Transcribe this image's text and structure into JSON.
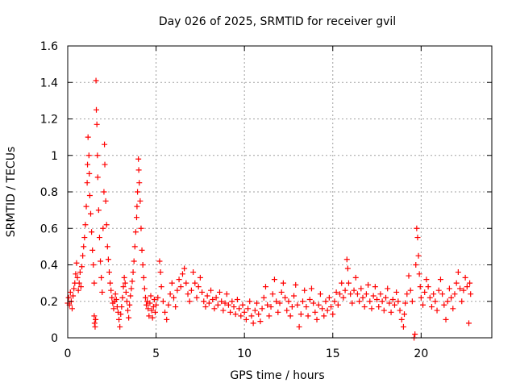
{
  "chart_data": {
    "type": "scatter",
    "title": "Day 026 of 2025, SRMTID for receiver gvil",
    "xlabel": "GPS time / hours",
    "ylabel": "SRMTID / TECUs",
    "xlim": [
      0,
      24
    ],
    "ylim": [
      0,
      1.6
    ],
    "xticks": [
      0,
      5,
      10,
      15,
      20
    ],
    "xtick_labels": [
      "0",
      "5",
      "10",
      "15",
      "20"
    ],
    "yticks": [
      0,
      0.2,
      0.4,
      0.6,
      0.8,
      1.0,
      1.2,
      1.4,
      1.6
    ],
    "ytick_labels": [
      "0",
      "0.2",
      "0.4",
      "0.6",
      "0.8",
      "1",
      "1.2",
      "1.4",
      "1.6"
    ],
    "grid": true,
    "marker": "plus",
    "color": "#ff0000",
    "series": [
      {
        "name": "SRMTID",
        "points": [
          [
            0.0,
            0.19
          ],
          [
            0.05,
            0.22
          ],
          [
            0.1,
            0.18
          ],
          [
            0.15,
            0.25
          ],
          [
            0.2,
            0.2
          ],
          [
            0.25,
            0.16
          ],
          [
            0.3,
            0.23
          ],
          [
            0.35,
            0.27
          ],
          [
            0.4,
            0.3
          ],
          [
            0.45,
            0.35
          ],
          [
            0.5,
            0.41
          ],
          [
            0.55,
            0.33
          ],
          [
            0.6,
            0.26
          ],
          [
            0.65,
            0.3
          ],
          [
            0.7,
            0.36
          ],
          [
            0.75,
            0.28
          ],
          [
            0.8,
            0.39
          ],
          [
            0.85,
            0.45
          ],
          [
            0.9,
            0.5
          ],
          [
            0.95,
            0.55
          ],
          [
            1.0,
            0.62
          ],
          [
            1.05,
            0.72
          ],
          [
            1.1,
            0.85
          ],
          [
            1.12,
            0.95
          ],
          [
            1.15,
            1.1
          ],
          [
            1.2,
            1.0
          ],
          [
            1.22,
            0.9
          ],
          [
            1.25,
            0.78
          ],
          [
            1.3,
            0.68
          ],
          [
            1.35,
            0.58
          ],
          [
            1.4,
            0.48
          ],
          [
            1.45,
            0.4
          ],
          [
            1.5,
            0.3
          ],
          [
            1.5,
            0.12
          ],
          [
            1.52,
            0.08
          ],
          [
            1.55,
            0.06
          ],
          [
            1.58,
            0.1
          ],
          [
            1.6,
            1.41
          ],
          [
            1.62,
            1.25
          ],
          [
            1.65,
            1.17
          ],
          [
            1.68,
            1.0
          ],
          [
            1.7,
            0.88
          ],
          [
            1.75,
            0.7
          ],
          [
            1.8,
            0.55
          ],
          [
            1.85,
            0.42
          ],
          [
            1.9,
            0.33
          ],
          [
            1.95,
            0.25
          ],
          [
            2.0,
            0.6
          ],
          [
            2.05,
            0.8
          ],
          [
            2.08,
            1.06
          ],
          [
            2.1,
            0.95
          ],
          [
            2.15,
            0.75
          ],
          [
            2.2,
            0.62
          ],
          [
            2.25,
            0.5
          ],
          [
            2.3,
            0.43
          ],
          [
            2.35,
            0.36
          ],
          [
            2.4,
            0.3
          ],
          [
            2.45,
            0.26
          ],
          [
            2.5,
            0.22
          ],
          [
            2.55,
            0.19
          ],
          [
            2.6,
            0.16
          ],
          [
            2.65,
            0.2
          ],
          [
            2.7,
            0.24
          ],
          [
            2.75,
            0.21
          ],
          [
            2.8,
            0.17
          ],
          [
            2.85,
            0.14
          ],
          [
            2.9,
            0.1
          ],
          [
            2.95,
            0.06
          ],
          [
            3.0,
            0.13
          ],
          [
            3.05,
            0.17
          ],
          [
            3.1,
            0.22
          ],
          [
            3.15,
            0.28
          ],
          [
            3.2,
            0.33
          ],
          [
            3.25,
            0.3
          ],
          [
            3.3,
            0.25
          ],
          [
            3.35,
            0.2
          ],
          [
            3.4,
            0.15
          ],
          [
            3.45,
            0.11
          ],
          [
            3.5,
            0.18
          ],
          [
            3.55,
            0.23
          ],
          [
            3.6,
            0.27
          ],
          [
            3.65,
            0.31
          ],
          [
            3.7,
            0.36
          ],
          [
            3.75,
            0.42
          ],
          [
            3.8,
            0.5
          ],
          [
            3.85,
            0.58
          ],
          [
            3.9,
            0.66
          ],
          [
            3.92,
            0.72
          ],
          [
            3.95,
            0.8
          ],
          [
            4.0,
            0.98
          ],
          [
            4.02,
            0.92
          ],
          [
            4.05,
            0.85
          ],
          [
            4.1,
            0.75
          ],
          [
            4.15,
            0.6
          ],
          [
            4.2,
            0.48
          ],
          [
            4.25,
            0.4
          ],
          [
            4.3,
            0.33
          ],
          [
            4.35,
            0.27
          ],
          [
            4.4,
            0.22
          ],
          [
            4.45,
            0.18
          ],
          [
            4.5,
            0.2
          ],
          [
            4.55,
            0.16
          ],
          [
            4.6,
            0.12
          ],
          [
            4.65,
            0.19
          ],
          [
            4.7,
            0.23
          ],
          [
            4.75,
            0.15
          ],
          [
            4.8,
            0.11
          ],
          [
            4.85,
            0.17
          ],
          [
            4.9,
            0.21
          ],
          [
            4.95,
            0.14
          ],
          [
            5.0,
            0.18
          ],
          [
            5.1,
            0.22
          ],
          [
            5.2,
            0.42
          ],
          [
            5.25,
            0.36
          ],
          [
            5.3,
            0.28
          ],
          [
            5.4,
            0.2
          ],
          [
            5.5,
            0.14
          ],
          [
            5.6,
            0.1
          ],
          [
            5.7,
            0.18
          ],
          [
            5.8,
            0.24
          ],
          [
            5.9,
            0.3
          ],
          [
            6.0,
            0.22
          ],
          [
            6.1,
            0.17
          ],
          [
            6.2,
            0.26
          ],
          [
            6.3,
            0.32
          ],
          [
            6.4,
            0.28
          ],
          [
            6.5,
            0.35
          ],
          [
            6.6,
            0.38
          ],
          [
            6.7,
            0.3
          ],
          [
            6.8,
            0.24
          ],
          [
            6.9,
            0.2
          ],
          [
            7.0,
            0.26
          ],
          [
            7.1,
            0.36
          ],
          [
            7.2,
            0.3
          ],
          [
            7.3,
            0.22
          ],
          [
            7.4,
            0.28
          ],
          [
            7.5,
            0.33
          ],
          [
            7.6,
            0.25
          ],
          [
            7.7,
            0.2
          ],
          [
            7.8,
            0.17
          ],
          [
            7.9,
            0.23
          ],
          [
            8.0,
            0.19
          ],
          [
            8.1,
            0.26
          ],
          [
            8.2,
            0.21
          ],
          [
            8.3,
            0.16
          ],
          [
            8.4,
            0.22
          ],
          [
            8.5,
            0.18
          ],
          [
            8.6,
            0.25
          ],
          [
            8.7,
            0.2
          ],
          [
            8.8,
            0.15
          ],
          [
            8.9,
            0.19
          ],
          [
            9.0,
            0.24
          ],
          [
            9.1,
            0.18
          ],
          [
            9.2,
            0.14
          ],
          [
            9.3,
            0.2
          ],
          [
            9.4,
            0.17
          ],
          [
            9.5,
            0.13
          ],
          [
            9.6,
            0.21
          ],
          [
            9.7,
            0.16
          ],
          [
            9.8,
            0.12
          ],
          [
            9.9,
            0.18
          ],
          [
            10.0,
            0.14
          ],
          [
            10.1,
            0.1
          ],
          [
            10.2,
            0.16
          ],
          [
            10.3,
            0.2
          ],
          [
            10.4,
            0.12
          ],
          [
            10.5,
            0.08
          ],
          [
            10.6,
            0.15
          ],
          [
            10.7,
            0.19
          ],
          [
            10.8,
            0.13
          ],
          [
            10.9,
            0.09
          ],
          [
            11.0,
            0.16
          ],
          [
            11.1,
            0.22
          ],
          [
            11.2,
            0.28
          ],
          [
            11.3,
            0.18
          ],
          [
            11.4,
            0.12
          ],
          [
            11.5,
            0.17
          ],
          [
            11.6,
            0.24
          ],
          [
            11.7,
            0.32
          ],
          [
            11.8,
            0.2
          ],
          [
            11.9,
            0.14
          ],
          [
            12.0,
            0.19
          ],
          [
            12.1,
            0.25
          ],
          [
            12.2,
            0.3
          ],
          [
            12.3,
            0.22
          ],
          [
            12.4,
            0.15
          ],
          [
            12.5,
            0.2
          ],
          [
            12.6,
            0.12
          ],
          [
            12.7,
            0.17
          ],
          [
            12.8,
            0.23
          ],
          [
            12.9,
            0.29
          ],
          [
            13.0,
            0.18
          ],
          [
            13.1,
            0.06
          ],
          [
            13.2,
            0.13
          ],
          [
            13.3,
            0.2
          ],
          [
            13.4,
            0.26
          ],
          [
            13.5,
            0.17
          ],
          [
            13.6,
            0.12
          ],
          [
            13.7,
            0.21
          ],
          [
            13.8,
            0.27
          ],
          [
            13.9,
            0.19
          ],
          [
            14.0,
            0.14
          ],
          [
            14.1,
            0.1
          ],
          [
            14.2,
            0.18
          ],
          [
            14.3,
            0.24
          ],
          [
            14.4,
            0.16
          ],
          [
            14.5,
            0.12
          ],
          [
            14.6,
            0.2
          ],
          [
            14.7,
            0.15
          ],
          [
            14.8,
            0.22
          ],
          [
            14.9,
            0.17
          ],
          [
            15.0,
            0.13
          ],
          [
            15.1,
            0.2
          ],
          [
            15.2,
            0.25
          ],
          [
            15.3,
            0.18
          ],
          [
            15.4,
            0.24
          ],
          [
            15.5,
            0.3
          ],
          [
            15.6,
            0.22
          ],
          [
            15.7,
            0.26
          ],
          [
            15.8,
            0.43
          ],
          [
            15.85,
            0.38
          ],
          [
            15.9,
            0.3
          ],
          [
            16.0,
            0.24
          ],
          [
            16.1,
            0.19
          ],
          [
            16.2,
            0.26
          ],
          [
            16.3,
            0.33
          ],
          [
            16.4,
            0.24
          ],
          [
            16.5,
            0.2
          ],
          [
            16.6,
            0.27
          ],
          [
            16.7,
            0.22
          ],
          [
            16.8,
            0.17
          ],
          [
            16.9,
            0.24
          ],
          [
            17.0,
            0.29
          ],
          [
            17.1,
            0.2
          ],
          [
            17.2,
            0.16
          ],
          [
            17.3,
            0.23
          ],
          [
            17.4,
            0.28
          ],
          [
            17.5,
            0.21
          ],
          [
            17.6,
            0.17
          ],
          [
            17.7,
            0.24
          ],
          [
            17.8,
            0.2
          ],
          [
            17.9,
            0.15
          ],
          [
            18.0,
            0.22
          ],
          [
            18.1,
            0.27
          ],
          [
            18.2,
            0.19
          ],
          [
            18.3,
            0.14
          ],
          [
            18.4,
            0.21
          ],
          [
            18.5,
            0.18
          ],
          [
            18.6,
            0.25
          ],
          [
            18.7,
            0.2
          ],
          [
            18.8,
            0.15
          ],
          [
            18.9,
            0.1
          ],
          [
            19.0,
            0.06
          ],
          [
            19.05,
            0.13
          ],
          [
            19.1,
            0.19
          ],
          [
            19.2,
            0.24
          ],
          [
            19.3,
            0.34
          ],
          [
            19.4,
            0.26
          ],
          [
            19.5,
            0.2
          ],
          [
            19.6,
            0.0
          ],
          [
            19.65,
            0.02
          ],
          [
            19.7,
            0.4
          ],
          [
            19.75,
            0.6
          ],
          [
            19.8,
            0.55
          ],
          [
            19.85,
            0.45
          ],
          [
            19.9,
            0.35
          ],
          [
            19.95,
            0.28
          ],
          [
            20.0,
            0.22
          ],
          [
            20.1,
            0.18
          ],
          [
            20.2,
            0.25
          ],
          [
            20.3,
            0.32
          ],
          [
            20.4,
            0.28
          ],
          [
            20.5,
            0.22
          ],
          [
            20.6,
            0.17
          ],
          [
            20.7,
            0.24
          ],
          [
            20.8,
            0.2
          ],
          [
            20.9,
            0.15
          ],
          [
            21.0,
            0.26
          ],
          [
            21.1,
            0.32
          ],
          [
            21.2,
            0.24
          ],
          [
            21.3,
            0.18
          ],
          [
            21.4,
            0.1
          ],
          [
            21.5,
            0.2
          ],
          [
            21.6,
            0.27
          ],
          [
            21.7,
            0.22
          ],
          [
            21.8,
            0.16
          ],
          [
            21.9,
            0.24
          ],
          [
            22.0,
            0.3
          ],
          [
            22.1,
            0.36
          ],
          [
            22.2,
            0.27
          ],
          [
            22.3,
            0.2
          ],
          [
            22.4,
            0.26
          ],
          [
            22.5,
            0.33
          ],
          [
            22.6,
            0.28
          ],
          [
            22.7,
            0.08
          ],
          [
            22.75,
            0.3
          ],
          [
            22.8,
            0.24
          ]
        ]
      }
    ]
  }
}
